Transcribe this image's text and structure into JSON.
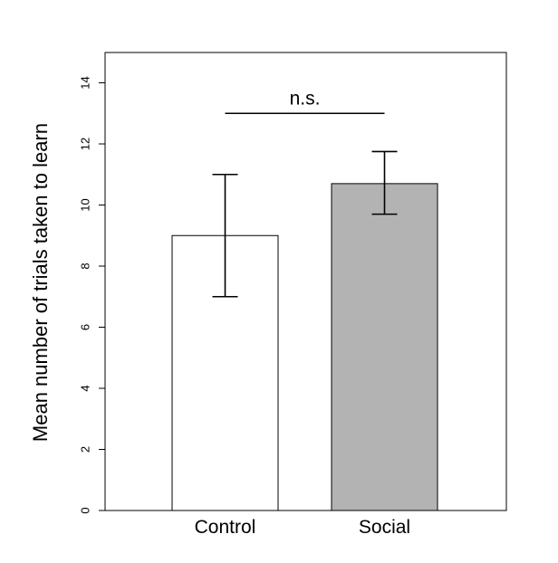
{
  "chart_data": {
    "type": "bar",
    "categories": [
      "Control",
      "Social"
    ],
    "values": [
      9.0,
      10.7
    ],
    "error_low": [
      7.0,
      9.7
    ],
    "error_high": [
      11.0,
      11.75
    ],
    "bar_colors": [
      "#ffffff",
      "#b3b3b3"
    ],
    "title": "",
    "xlabel": "",
    "ylabel": "Mean number of trials taken to learn",
    "ylim": [
      0,
      15
    ],
    "yticks": [
      0,
      2,
      4,
      6,
      8,
      10,
      12,
      14
    ],
    "grid": false,
    "annotations": [
      {
        "text": "n.s.",
        "from_category": "Control",
        "to_category": "Social",
        "y": 13.0
      }
    ]
  }
}
